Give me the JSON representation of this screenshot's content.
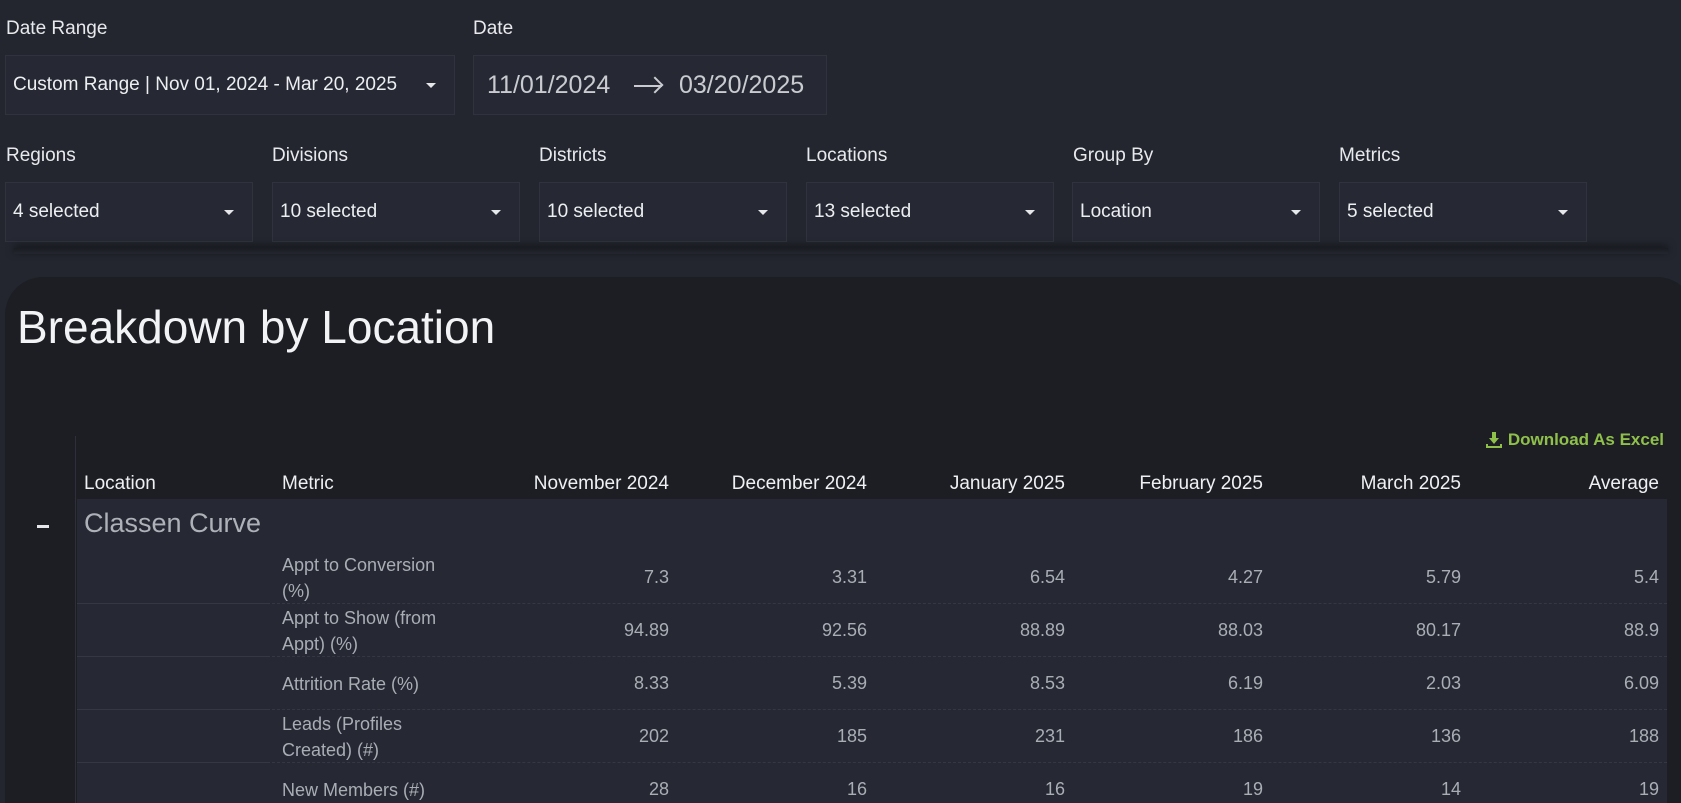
{
  "filters": {
    "date_range": {
      "label": "Date Range",
      "value": "Custom Range | Nov 01, 2024 - Mar 20, 2025"
    },
    "date": {
      "label": "Date",
      "start": "11/01/2024",
      "end": "03/20/2025"
    },
    "regions": {
      "label": "Regions",
      "value": "4 selected"
    },
    "divisions": {
      "label": "Divisions",
      "value": "10 selected"
    },
    "districts": {
      "label": "Districts",
      "value": "10 selected"
    },
    "locations": {
      "label": "Locations",
      "value": "13 selected"
    },
    "group_by": {
      "label": "Group By",
      "value": "Location"
    },
    "metrics": {
      "label": "Metrics",
      "value": "5 selected"
    }
  },
  "panel": {
    "title": "Breakdown by Location",
    "download_label": "Download As Excel",
    "collapse_symbol": "-"
  },
  "table": {
    "columns": [
      "Location",
      "Metric",
      "November 2024",
      "December 2024",
      "January 2025",
      "February 2025",
      "March 2025",
      "Average"
    ],
    "group": "Classen Curve",
    "rows": [
      {
        "metric": "Appt to Conversion (%)",
        "values": [
          "7.3",
          "3.31",
          "6.54",
          "4.27",
          "5.79",
          "5.4"
        ]
      },
      {
        "metric": "Appt to Show (from Appt) (%)",
        "values": [
          "94.89",
          "92.56",
          "88.89",
          "88.03",
          "80.17",
          "88.9"
        ]
      },
      {
        "metric": "Attrition Rate (%)",
        "values": [
          "8.33",
          "5.39",
          "8.53",
          "6.19",
          "2.03",
          "6.09"
        ]
      },
      {
        "metric": "Leads (Profiles Created) (#)",
        "values": [
          "202",
          "185",
          "231",
          "186",
          "136",
          "188"
        ]
      },
      {
        "metric": "New Members (#)",
        "values": [
          "28",
          "16",
          "16",
          "19",
          "14",
          "19"
        ]
      }
    ]
  },
  "colors": {
    "background": "#23262f",
    "panel": "#1c1e24",
    "accent": "#8fc14a"
  }
}
